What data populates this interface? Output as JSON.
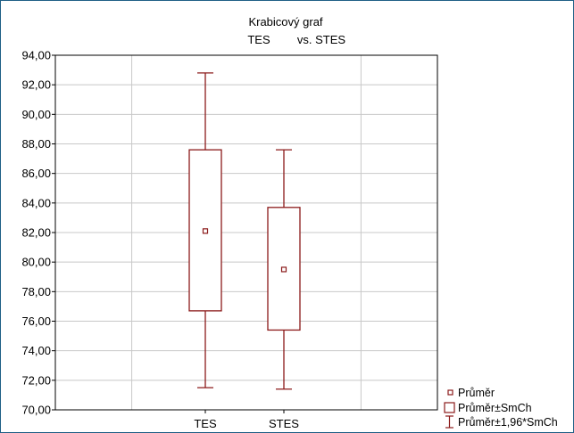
{
  "chart_data": {
    "type": "box",
    "title": "Krabicový graf",
    "subtitle_left": "TES",
    "subtitle_right": "vs. STES",
    "categories": [
      "TES",
      "STES"
    ],
    "ylim": [
      70,
      94
    ],
    "yticks": [
      "70,00",
      "72,00",
      "74,00",
      "76,00",
      "78,00",
      "80,00",
      "82,00",
      "84,00",
      "86,00",
      "88,00",
      "90,00",
      "92,00",
      "94,00"
    ],
    "ytick_values": [
      70,
      72,
      74,
      76,
      78,
      80,
      82,
      84,
      86,
      88,
      90,
      92,
      94
    ],
    "boxes": [
      {
        "name": "TES",
        "mean": 82.1,
        "box_low": 76.7,
        "box_high": 87.6,
        "whisker_low": 71.5,
        "whisker_high": 92.8
      },
      {
        "name": "STES",
        "mean": 79.5,
        "box_low": 75.4,
        "box_high": 83.7,
        "whisker_low": 71.4,
        "whisker_high": 87.6
      }
    ],
    "grid": true,
    "legend_position": "bottom-right",
    "legend": [
      "Průměr",
      "Průměr±SmCh",
      "Průměr±1,96*SmCh"
    ],
    "colors": {
      "box": "#8b1a1a",
      "grid": "#c8c8c8",
      "axis": "#000000",
      "frame": "#1f5f86"
    }
  }
}
